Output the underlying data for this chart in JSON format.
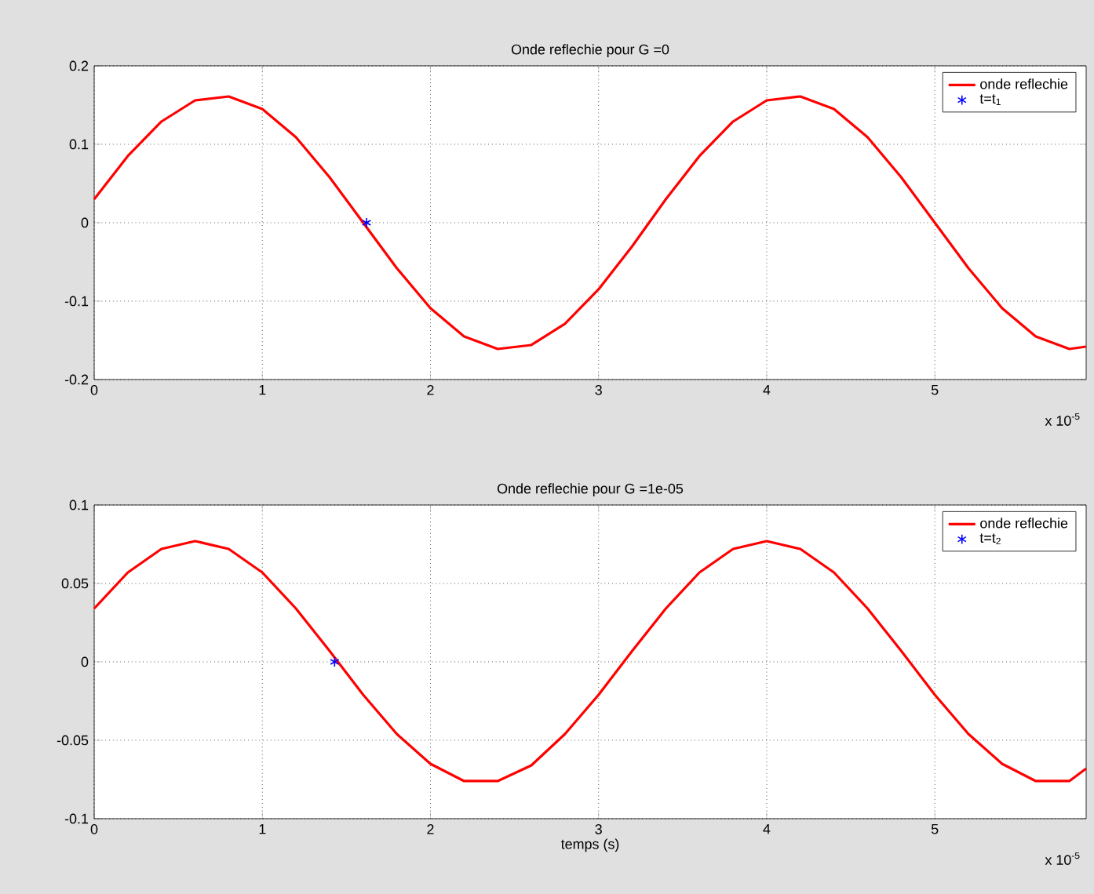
{
  "chart_data": [
    {
      "type": "line",
      "title": "Onde reflechie pour G =0",
      "x": [
        0,
        0.2,
        0.4,
        0.6,
        0.8,
        1.0,
        1.2,
        1.4,
        1.6,
        1.8,
        2.0,
        2.2,
        2.4,
        2.6,
        2.8,
        3.0,
        3.2,
        3.4,
        3.6,
        3.8,
        4.0,
        4.2,
        4.4,
        4.6,
        4.8,
        5.0,
        5.2,
        5.4,
        5.6,
        5.8,
        5.9
      ],
      "series": [
        {
          "name": "onde reflechie",
          "color": "#ff0000",
          "marker": "none",
          "line_style": "solid",
          "values": [
            0.03,
            0.085,
            0.129,
            0.156,
            0.161,
            0.145,
            0.109,
            0.058,
            0,
            -0.058,
            -0.109,
            -0.145,
            -0.161,
            -0.156,
            -0.129,
            -0.085,
            -0.03,
            0.03,
            0.085,
            0.129,
            0.156,
            0.161,
            0.145,
            0.109,
            0.058,
            0,
            -0.058,
            -0.109,
            -0.145,
            -0.161,
            -0.158
          ]
        },
        {
          "name": "t=t$_{1}$",
          "type": "scatter",
          "color": "#0000ff",
          "marker": "cross",
          "x": [
            1.62
          ],
          "values": [
            0
          ]
        }
      ],
      "xlim": [
        0,
        5.9
      ],
      "ylim": [
        -0.2,
        0.2
      ],
      "xticks": [
        0,
        1,
        2,
        3,
        4,
        5
      ],
      "yticks": [
        -0.2,
        -0.1,
        0,
        0.1,
        0.2
      ],
      "grid": true,
      "legend": "top right",
      "annotations": [
        "x 10$^{-5}$"
      ]
    },
    {
      "type": "line",
      "title": "Onde reflechie pour G =1e-05",
      "xlabel": "temps (s)",
      "x": [
        0,
        0.2,
        0.4,
        0.6,
        0.8,
        1.0,
        1.2,
        1.4,
        1.6,
        1.8,
        2.0,
        2.2,
        2.4,
        2.6,
        2.8,
        3.0,
        3.2,
        3.4,
        3.6,
        3.8,
        4.0,
        4.2,
        4.4,
        4.6,
        4.8,
        5.0,
        5.2,
        5.4,
        5.6,
        5.8,
        5.9
      ],
      "series": [
        {
          "name": "onde reflechie",
          "color": "#ff0000",
          "marker": "none",
          "line_style": "solid",
          "values": [
            0.034,
            0.057,
            0.072,
            0.077,
            0.072,
            0.057,
            0.034,
            0.007,
            -0.021,
            -0.046,
            -0.065,
            -0.076,
            -0.076,
            -0.066,
            -0.046,
            -0.021,
            0.007,
            0.034,
            0.057,
            0.072,
            0.077,
            0.072,
            0.057,
            0.034,
            0.007,
            -0.021,
            -0.046,
            -0.065,
            -0.076,
            -0.076,
            -0.068
          ]
        },
        {
          "name": "t=t$_{2}$",
          "type": "scatter",
          "color": "#0000ff",
          "marker": "cross",
          "x": [
            1.43
          ],
          "values": [
            0
          ]
        }
      ],
      "xlim": [
        0,
        5.9
      ],
      "ylim": [
        -0.1,
        0.1
      ],
      "xticks": [
        0,
        1,
        2,
        3,
        4,
        5
      ],
      "yticks": [
        -0.1,
        -0.05,
        0,
        0.05,
        0.1
      ],
      "grid": true,
      "legend": "top right",
      "annotations": [
        "x 10$^{-5}$"
      ]
    }
  ]
}
